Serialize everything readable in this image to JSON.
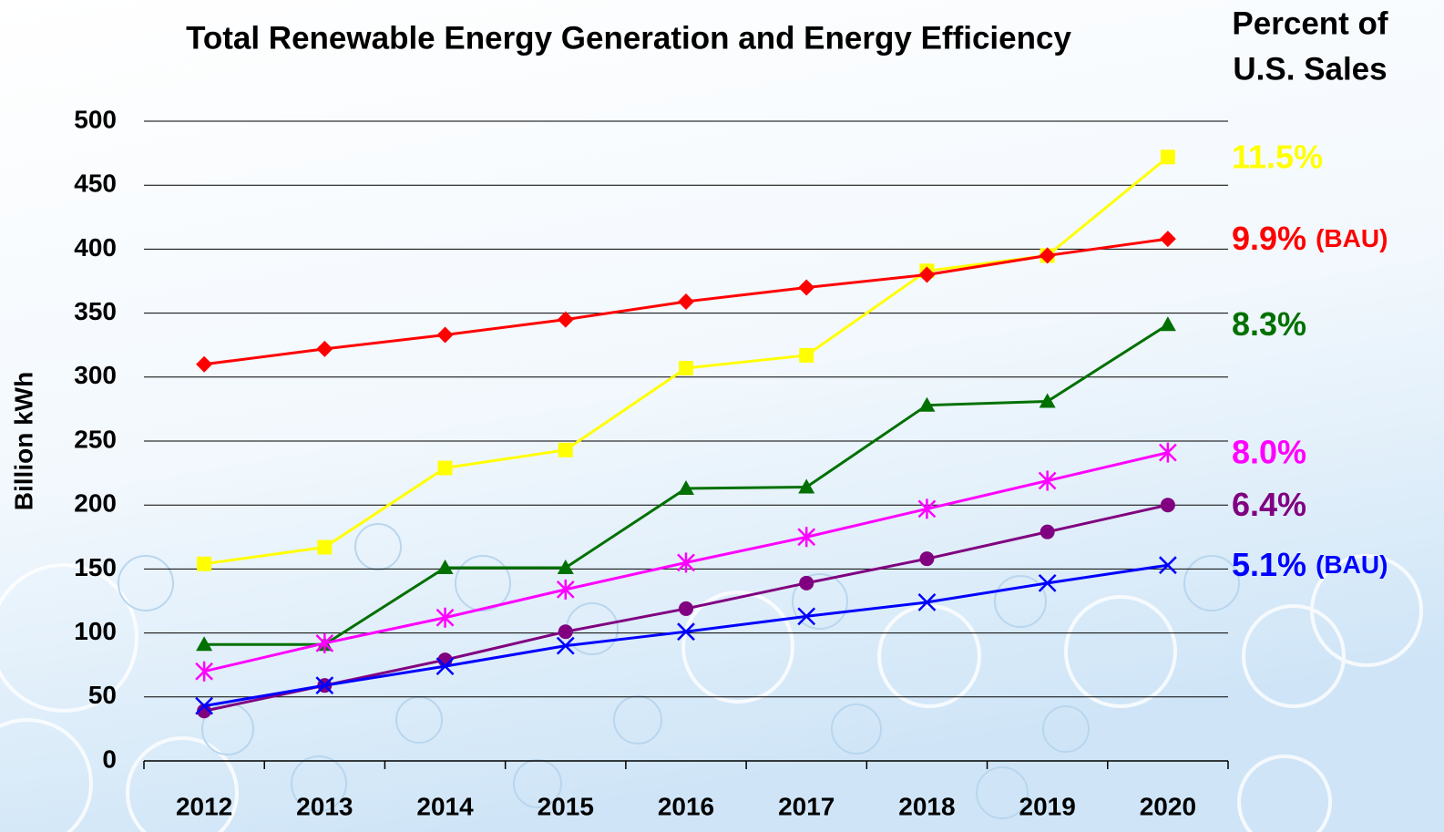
{
  "chart_data": {
    "type": "line",
    "title": "Total Renewable Energy Generation and Energy Efficiency",
    "right_title": [
      "Percent of",
      "U.S. Sales"
    ],
    "y_label": "Billion kWh",
    "categories": [
      "2012",
      "2013",
      "2014",
      "2015",
      "2016",
      "2017",
      "2018",
      "2019",
      "2020"
    ],
    "ylim": [
      0,
      500
    ],
    "yticks": [
      0,
      50,
      100,
      150,
      200,
      250,
      300,
      350,
      400,
      450,
      500
    ],
    "grid": true,
    "series": [
      {
        "color": "#ffff00",
        "marker": "square",
        "end_label": "11.5%",
        "values": [
          154,
          167,
          229,
          243,
          307,
          317,
          383,
          395,
          472
        ]
      },
      {
        "color": "#ff0000",
        "marker": "diamond",
        "end_label": "9.9%",
        "end_note": "(BAU)",
        "values": [
          310,
          322,
          333,
          345,
          359,
          370,
          380,
          395,
          408
        ]
      },
      {
        "color": "#007000",
        "marker": "triangle",
        "end_label": "8.3%",
        "values": [
          91,
          91,
          151,
          151,
          213,
          214,
          278,
          281,
          341
        ]
      },
      {
        "color": "#ff00ff",
        "marker": "star",
        "end_label": "8.0%",
        "values": [
          70,
          92,
          112,
          134,
          155,
          175,
          197,
          219,
          241
        ]
      },
      {
        "color": "#800080",
        "marker": "circle",
        "end_label": "6.4%",
        "values": [
          39,
          59,
          79,
          101,
          119,
          139,
          158,
          179,
          200
        ]
      },
      {
        "color": "#0000ff",
        "marker": "x",
        "end_label": "5.1%",
        "end_note": "(BAU)",
        "values": [
          43,
          59,
          74,
          90,
          101,
          113,
          124,
          139,
          153
        ]
      }
    ]
  }
}
